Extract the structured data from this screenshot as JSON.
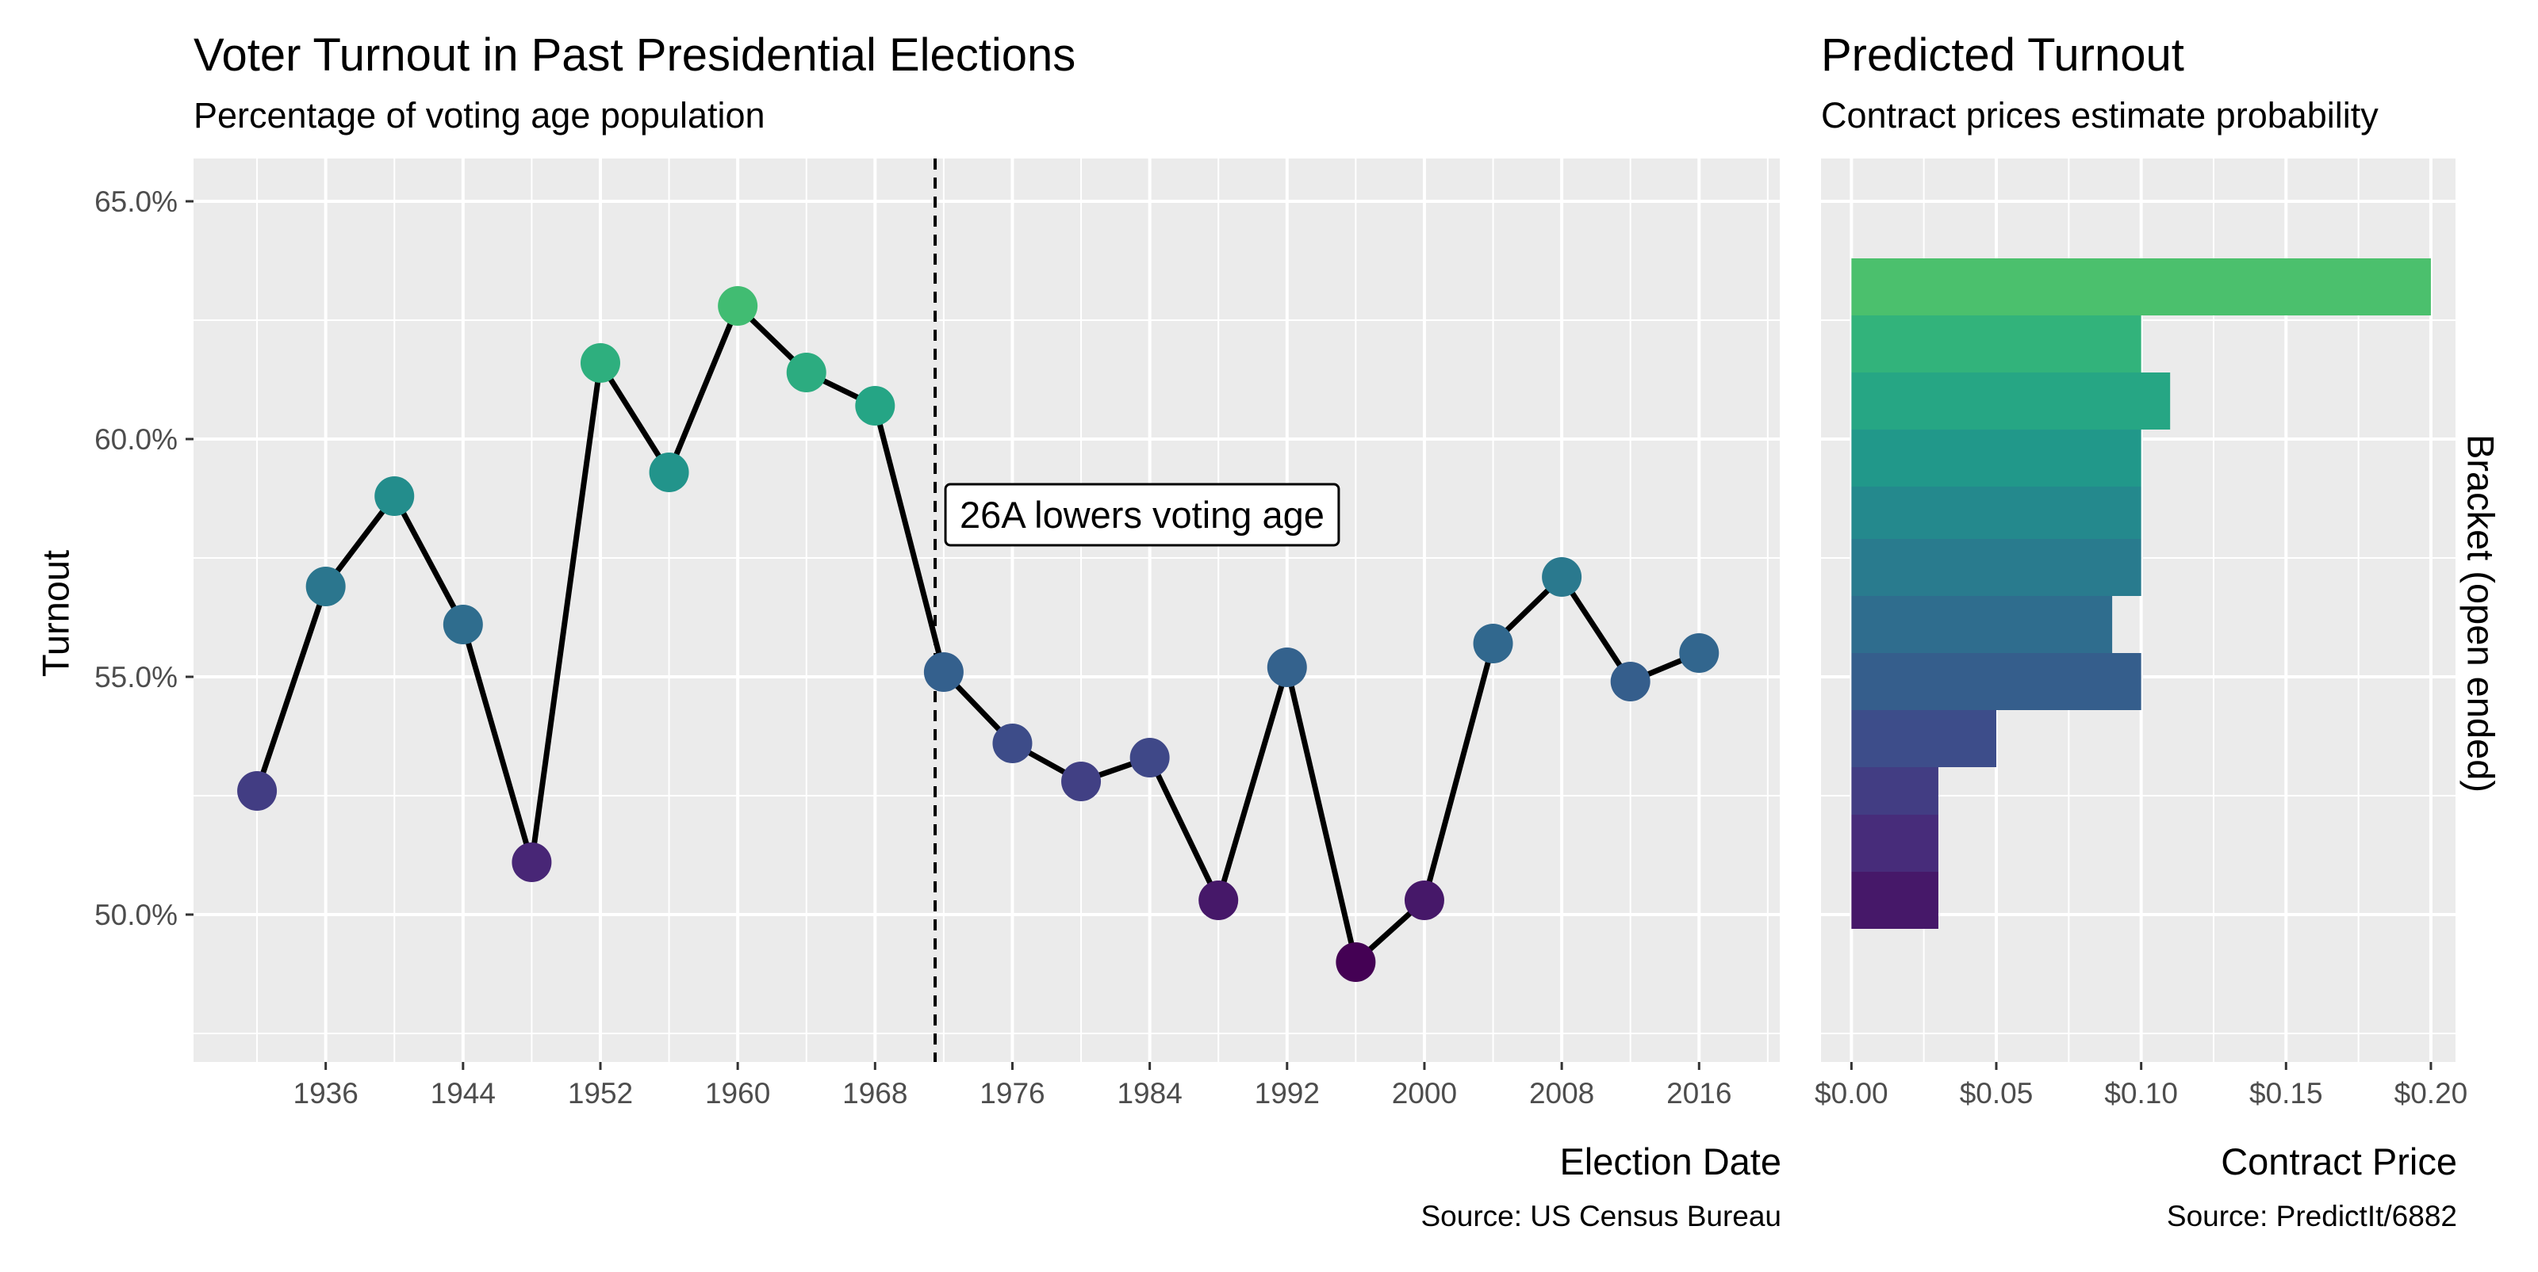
{
  "chart_data": [
    {
      "type": "line",
      "title": "Voter Turnout in Past Presidential Elections",
      "subtitle": "Percentage of voting age population",
      "xlabel": "Election Date",
      "ylabel": "Turnout",
      "caption": "Source: US Census Bureau",
      "x": [
        1932,
        1936,
        1940,
        1944,
        1948,
        1952,
        1956,
        1960,
        1964,
        1968,
        1972,
        1976,
        1980,
        1984,
        1988,
        1992,
        1996,
        2000,
        2004,
        2008,
        2012,
        2016
      ],
      "y": [
        52.6,
        56.9,
        58.8,
        56.1,
        51.1,
        61.6,
        59.3,
        62.8,
        61.4,
        60.7,
        55.1,
        53.6,
        52.8,
        53.3,
        50.3,
        55.2,
        49.0,
        50.3,
        55.7,
        57.1,
        54.9,
        55.5
      ],
      "xlim": [
        1928.3,
        2020.7
      ],
      "ylim": [
        46.9,
        65.9
      ],
      "x_ticks": [
        1936,
        1944,
        1952,
        1960,
        1968,
        1976,
        1984,
        1992,
        2000,
        2008,
        2016
      ],
      "y_ticks": [
        50,
        55,
        60,
        65
      ],
      "y_tick_labels": [
        "50.0%",
        "55.0%",
        "60.0%",
        "65.0%"
      ],
      "reference_line": {
        "x": 1971.5,
        "style": "dashed"
      },
      "annotation": {
        "text": "26A lowers voting age",
        "x": 1972.1,
        "y": 58.4
      },
      "grid": true
    },
    {
      "type": "bar",
      "orientation": "horizontal",
      "title": "Predicted Turnout",
      "subtitle": "Contract prices estimate probability",
      "xlabel": "Contract Price",
      "ylabel": "Bracket (open ended)",
      "caption": "Source: PredictIt/6882",
      "brackets": [
        {
          "low": 49.7,
          "high": 50.9,
          "price": 0.03
        },
        {
          "low": 50.9,
          "high": 52.1,
          "price": 0.03
        },
        {
          "low": 52.1,
          "high": 53.1,
          "price": 0.03
        },
        {
          "low": 53.1,
          "high": 54.3,
          "price": 0.05
        },
        {
          "low": 54.3,
          "high": 55.5,
          "price": 0.1
        },
        {
          "low": 55.5,
          "high": 56.7,
          "price": 0.09
        },
        {
          "low": 56.7,
          "high": 57.9,
          "price": 0.1
        },
        {
          "low": 57.9,
          "high": 59.0,
          "price": 0.1
        },
        {
          "low": 59.0,
          "high": 60.2,
          "price": 0.1
        },
        {
          "low": 60.2,
          "high": 61.4,
          "price": 0.11
        },
        {
          "low": 61.4,
          "high": 62.6,
          "price": 0.1
        },
        {
          "low": 62.6,
          "high": 63.8,
          "price": 0.2
        }
      ],
      "xlim": [
        -0.0105,
        0.2085
      ],
      "ylim": [
        46.9,
        65.9
      ],
      "x_ticks": [
        0,
        0.05,
        0.1,
        0.15,
        0.2
      ],
      "x_tick_labels": [
        "$0.00",
        "$0.05",
        "$0.10",
        "$0.15",
        "$0.20"
      ],
      "grid": true
    }
  ],
  "colors": {
    "panel_background": "#EBEBEB",
    "grid_major": "#FFFFFF",
    "line": "#000000",
    "tick_text": "#4D4D4D",
    "color_scale": "viridis"
  }
}
